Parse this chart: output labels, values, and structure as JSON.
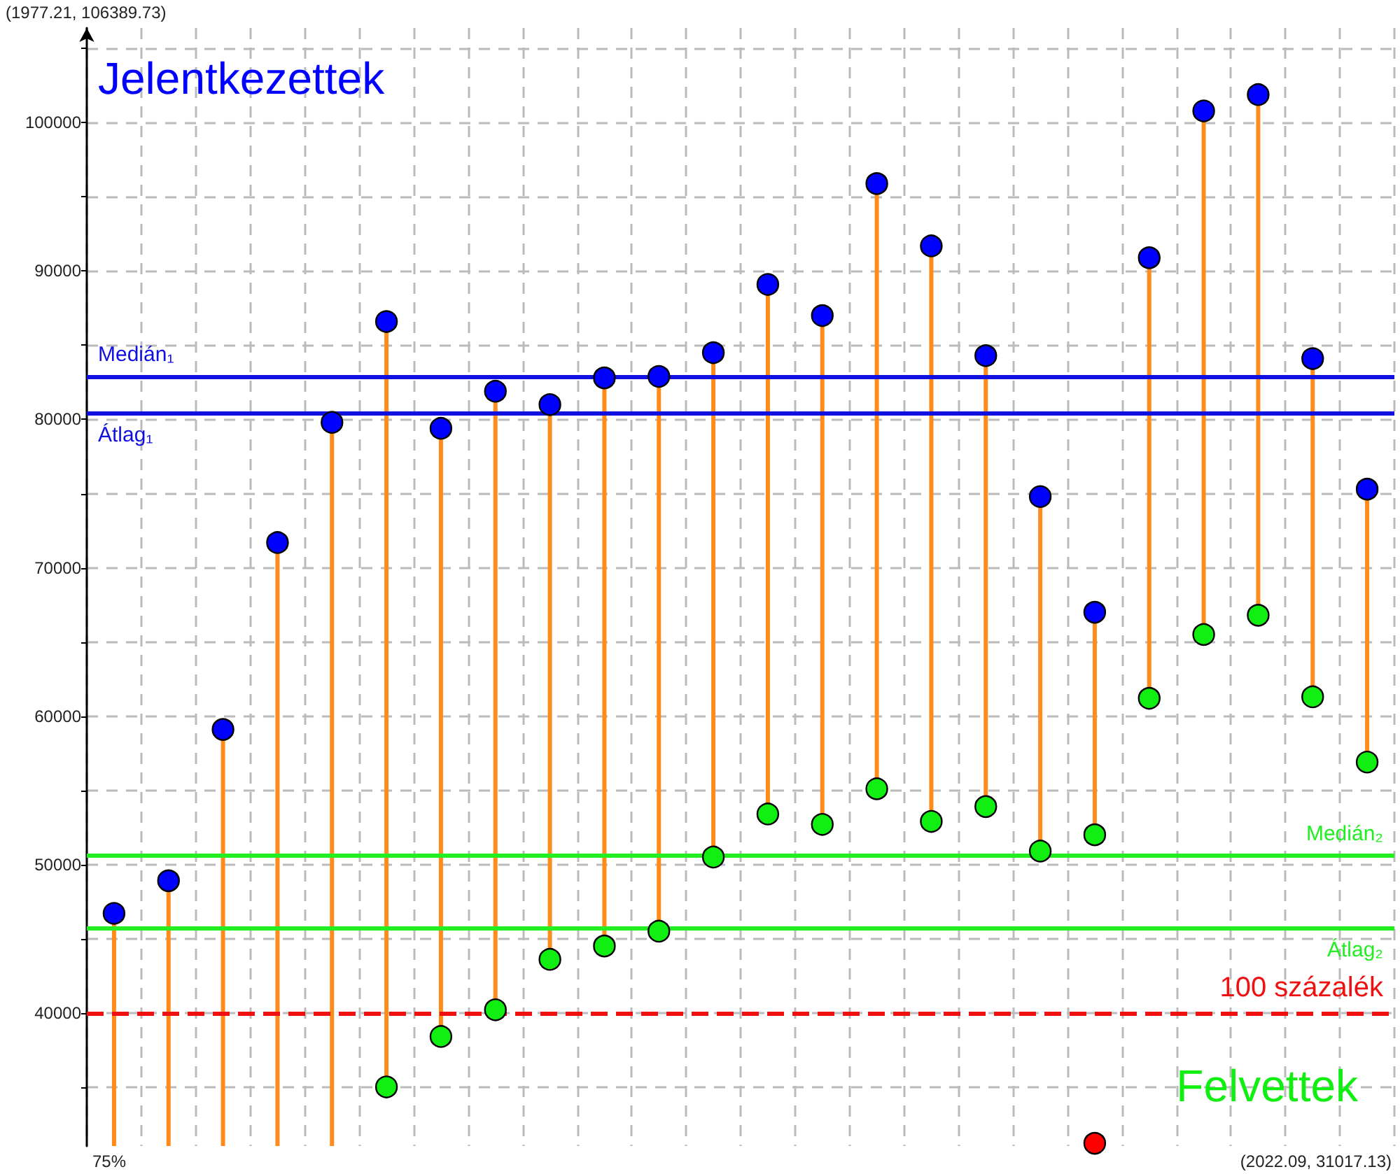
{
  "chart_data": {
    "type": "scatter",
    "categories": [
      null,
      null,
      null,
      null,
      null,
      null,
      null,
      null,
      null,
      null,
      null,
      null,
      null,
      null,
      null,
      null,
      null,
      null,
      null,
      null,
      null,
      null,
      null,
      null
    ],
    "ylim": [
      31017.13,
      106389.73
    ],
    "yticks": [
      {
        "value": 35000,
        "label": null
      },
      40000,
      {
        "value": 45000,
        "label": null
      },
      50000,
      {
        "value": 55000,
        "label": null
      },
      60000,
      {
        "value": 65000,
        "label": null
      },
      70000,
      {
        "value": 75000,
        "label": null
      },
      80000,
      {
        "value": 85000,
        "label": null
      },
      90000,
      {
        "value": 95000,
        "label": null
      },
      100000,
      {
        "value": 105000,
        "label": null
      }
    ],
    "tick_labels": "y",
    "grid": true,
    "marker": "circle",
    "series": [
      {
        "name": "Jelentkezettek",
        "type": "lollipop",
        "color": "#ff8c1a",
        "colors": [
          "#0000ff",
          "#0000ff",
          "#0000ff",
          "#0000ff",
          "#0000ff",
          "#0000ff",
          "#0000ff",
          "#0000ff",
          "#0000ff",
          "#0000ff",
          "#0000ff",
          "#0000ff",
          "#0000ff",
          "#0000ff",
          "#0000ff",
          "#0000ff",
          "#0000ff",
          "#0000ff",
          "#0000ff",
          "#0000ff",
          "#0000ff",
          "#0000ff",
          "#0000ff",
          "#0000ff"
        ],
        "values": [
          46700,
          48900,
          59100,
          71700,
          79800,
          86600,
          79400,
          81900,
          81000,
          82800,
          82900,
          84500,
          89100,
          87000,
          95900,
          91700,
          84300,
          74800,
          67000,
          90900,
          100800,
          101900,
          84100,
          75300
        ]
      },
      {
        "name": "Felvettek",
        "color": "#11ee11",
        "values": [
          null,
          null,
          null,
          null,
          null,
          35000,
          38400,
          40200,
          43600,
          44500,
          45500,
          50500,
          53400,
          52700,
          55100,
          52900,
          53900,
          50900,
          52000,
          61200,
          65500,
          66800,
          61300,
          56900
        ]
      },
      {
        "type": "scatter",
        "color": "#ff0000",
        "values": [
          null,
          null,
          null,
          null,
          null,
          null,
          null,
          null,
          null,
          null,
          null,
          null,
          null,
          null,
          null,
          null,
          null,
          null,
          31200,
          null,
          null,
          null,
          null,
          null
        ]
      }
    ],
    "ref_lines": [
      {
        "axis": "y",
        "value": 82900,
        "label": "Medián₁",
        "color": "#1010e0",
        "line_style": "solid"
      },
      {
        "axis": "y",
        "value": 80400,
        "label": "Átlag₁",
        "color": "#1010e0",
        "line_style": "solid"
      },
      {
        "axis": "y",
        "value": 50600,
        "label": "Medián₂",
        "color": "#22ee22",
        "line_style": "solid"
      },
      {
        "axis": "y",
        "value": 45700,
        "label": "Átlag₂",
        "color": "#22ee22",
        "line_style": "solid"
      },
      {
        "axis": "y",
        "value": 40000,
        "label": "100 százalék",
        "color": "#ee1111",
        "line_style": "dashed"
      }
    ],
    "annotations": [
      "(1977.21, 106389.73)",
      "(2022.09, 31017.13)",
      "75%"
    ]
  }
}
